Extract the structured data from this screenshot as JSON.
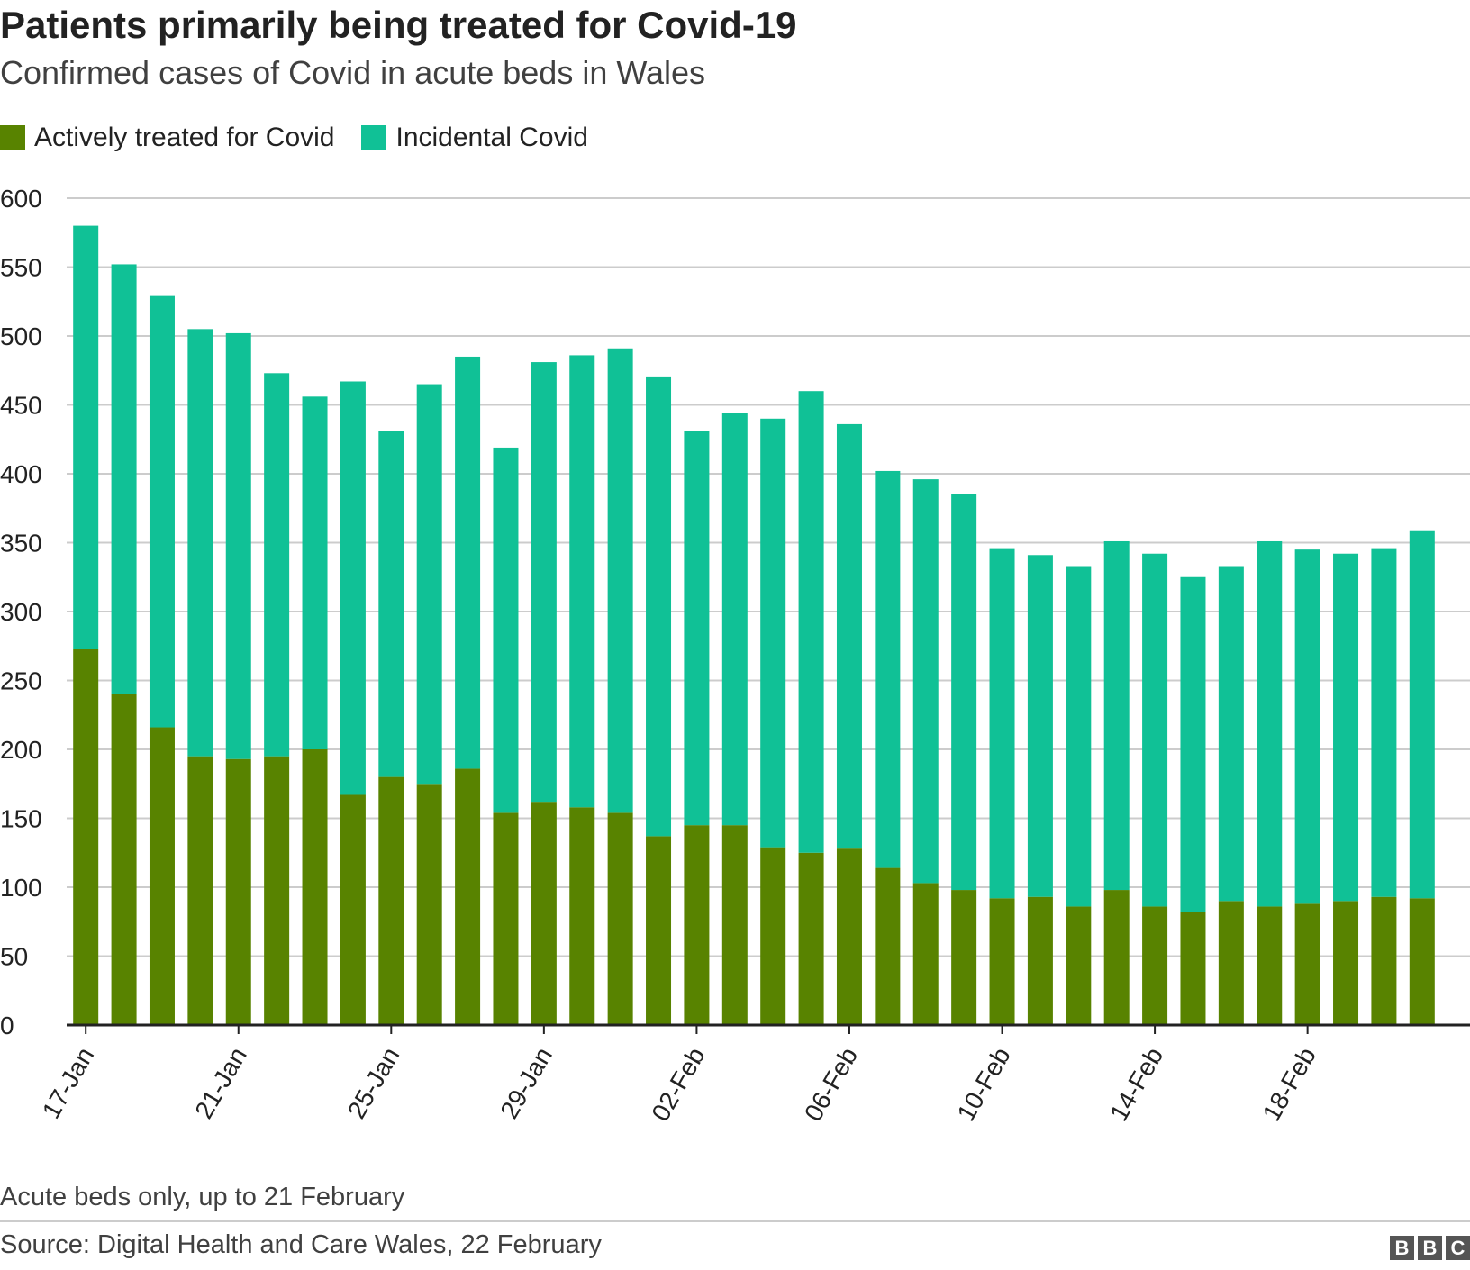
{
  "chart_data": {
    "type": "bar",
    "stacked": true,
    "title": "Patients primarily being treated for Covid-19",
    "subtitle": "Confirmed cases of Covid in acute beds in Wales",
    "xlabel": "",
    "ylabel": "",
    "ylim": [
      0,
      600
    ],
    "yticks": [
      "0",
      "50",
      "100",
      "150",
      "200",
      "250",
      "300",
      "350",
      "400",
      "450",
      "500",
      "550",
      "600"
    ],
    "x_tick_labels": [
      {
        "index": 0,
        "label": "17-Jan"
      },
      {
        "index": 4,
        "label": "21-Jan"
      },
      {
        "index": 8,
        "label": "25-Jan"
      },
      {
        "index": 12,
        "label": "29-Jan"
      },
      {
        "index": 16,
        "label": "02-Feb"
      },
      {
        "index": 20,
        "label": "06-Feb"
      },
      {
        "index": 24,
        "label": "10-Feb"
      },
      {
        "index": 28,
        "label": "14-Feb"
      },
      {
        "index": 32,
        "label": "18-Feb"
      }
    ],
    "categories": [
      "17-Jan",
      "18-Jan",
      "19-Jan",
      "20-Jan",
      "21-Jan",
      "22-Jan",
      "23-Jan",
      "24-Jan",
      "25-Jan",
      "26-Jan",
      "27-Jan",
      "28-Jan",
      "29-Jan",
      "30-Jan",
      "31-Jan",
      "01-Feb",
      "02-Feb",
      "03-Feb",
      "04-Feb",
      "05-Feb",
      "06-Feb",
      "07-Feb",
      "08-Feb",
      "09-Feb",
      "10-Feb",
      "11-Feb",
      "12-Feb",
      "13-Feb",
      "14-Feb",
      "15-Feb",
      "16-Feb",
      "17-Feb",
      "18-Feb",
      "19-Feb",
      "20-Feb",
      "21-Feb"
    ],
    "series": [
      {
        "name": "Actively treated for Covid",
        "color": "#588300",
        "values": [
          273,
          240,
          216,
          195,
          193,
          195,
          200,
          167,
          180,
          175,
          186,
          154,
          162,
          158,
          154,
          137,
          145,
          145,
          129,
          125,
          128,
          114,
          103,
          98,
          92,
          93,
          86,
          98,
          86,
          82,
          90,
          86,
          88,
          90,
          93,
          92
        ]
      },
      {
        "name": "Incidental Covid",
        "color": "#10c196",
        "values": [
          307,
          312,
          313,
          310,
          309,
          278,
          256,
          300,
          251,
          290,
          299,
          265,
          319,
          328,
          337,
          333,
          286,
          299,
          311,
          335,
          308,
          288,
          293,
          287,
          254,
          248,
          247,
          253,
          256,
          243,
          243,
          265,
          257,
          252,
          253,
          267
        ]
      }
    ],
    "note": "Acute beds only, up to 21 February",
    "source": "Source: Digital Health and Care Wales, 22 February",
    "logo": [
      "B",
      "B",
      "C"
    ],
    "colors": {
      "grid": "#cccccc",
      "axis": "#222222",
      "text": "#222222"
    }
  }
}
